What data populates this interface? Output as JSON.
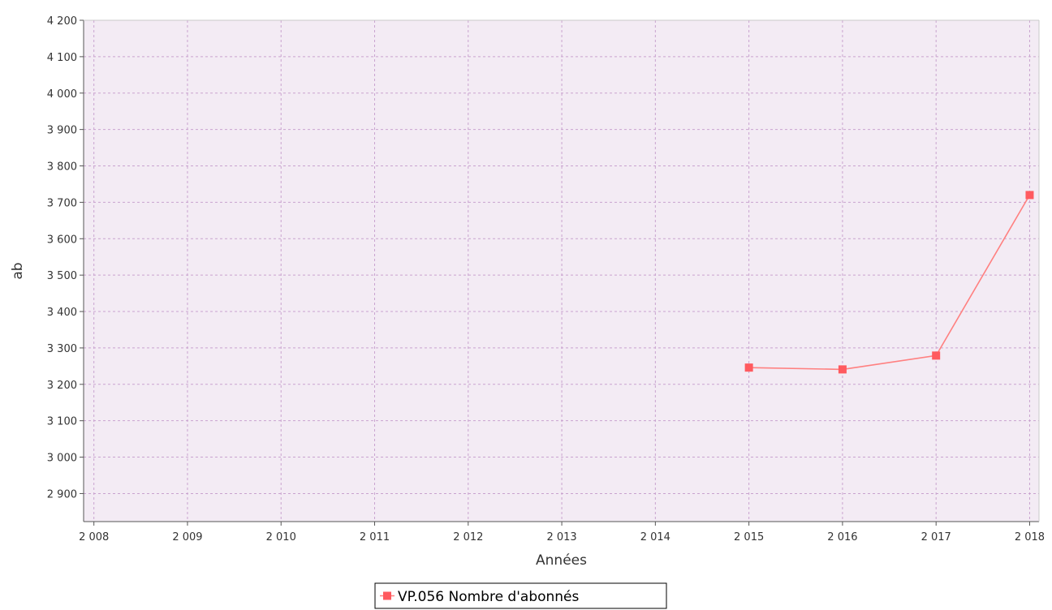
{
  "chart_data": {
    "type": "line",
    "title": "",
    "xlabel": "Années",
    "ylabel": "ab",
    "x_ticks": [
      "2 008",
      "2 009",
      "2 010",
      "2 011",
      "2 012",
      "2 013",
      "2 014",
      "2 015",
      "2 016",
      "2 017",
      "2 018"
    ],
    "x_values": [
      2008,
      2009,
      2010,
      2011,
      2012,
      2013,
      2014,
      2015,
      2016,
      2017,
      2018
    ],
    "y_ticks": [
      "2 900",
      "3 000",
      "3 100",
      "3 200",
      "3 300",
      "3 400",
      "3 500",
      "3 600",
      "3 700",
      "3 800",
      "3 900",
      "4 000",
      "4 100",
      "4 200"
    ],
    "y_tick_values": [
      2900,
      3000,
      3100,
      3200,
      3300,
      3400,
      3500,
      3600,
      3700,
      3800,
      3900,
      4000,
      4100,
      4200
    ],
    "xlim": [
      2007.89,
      2018.1
    ],
    "ylim": [
      2823,
      4200
    ],
    "grid": true,
    "legend_position": "bottom-center",
    "series": [
      {
        "name": "VP.056 Nombre d'abonnés",
        "color": "#ff5a5f",
        "line_color": "#ff8080",
        "marker": "square",
        "points": [
          {
            "x": 2015,
            "y": 3246
          },
          {
            "x": 2016,
            "y": 3241
          },
          {
            "x": 2017,
            "y": 3279
          },
          {
            "x": 2018,
            "y": 3720
          }
        ]
      }
    ],
    "colors": {
      "plot_background": "#f3ebf4",
      "grid": "#c9a3cf",
      "axis": "#555555"
    }
  }
}
